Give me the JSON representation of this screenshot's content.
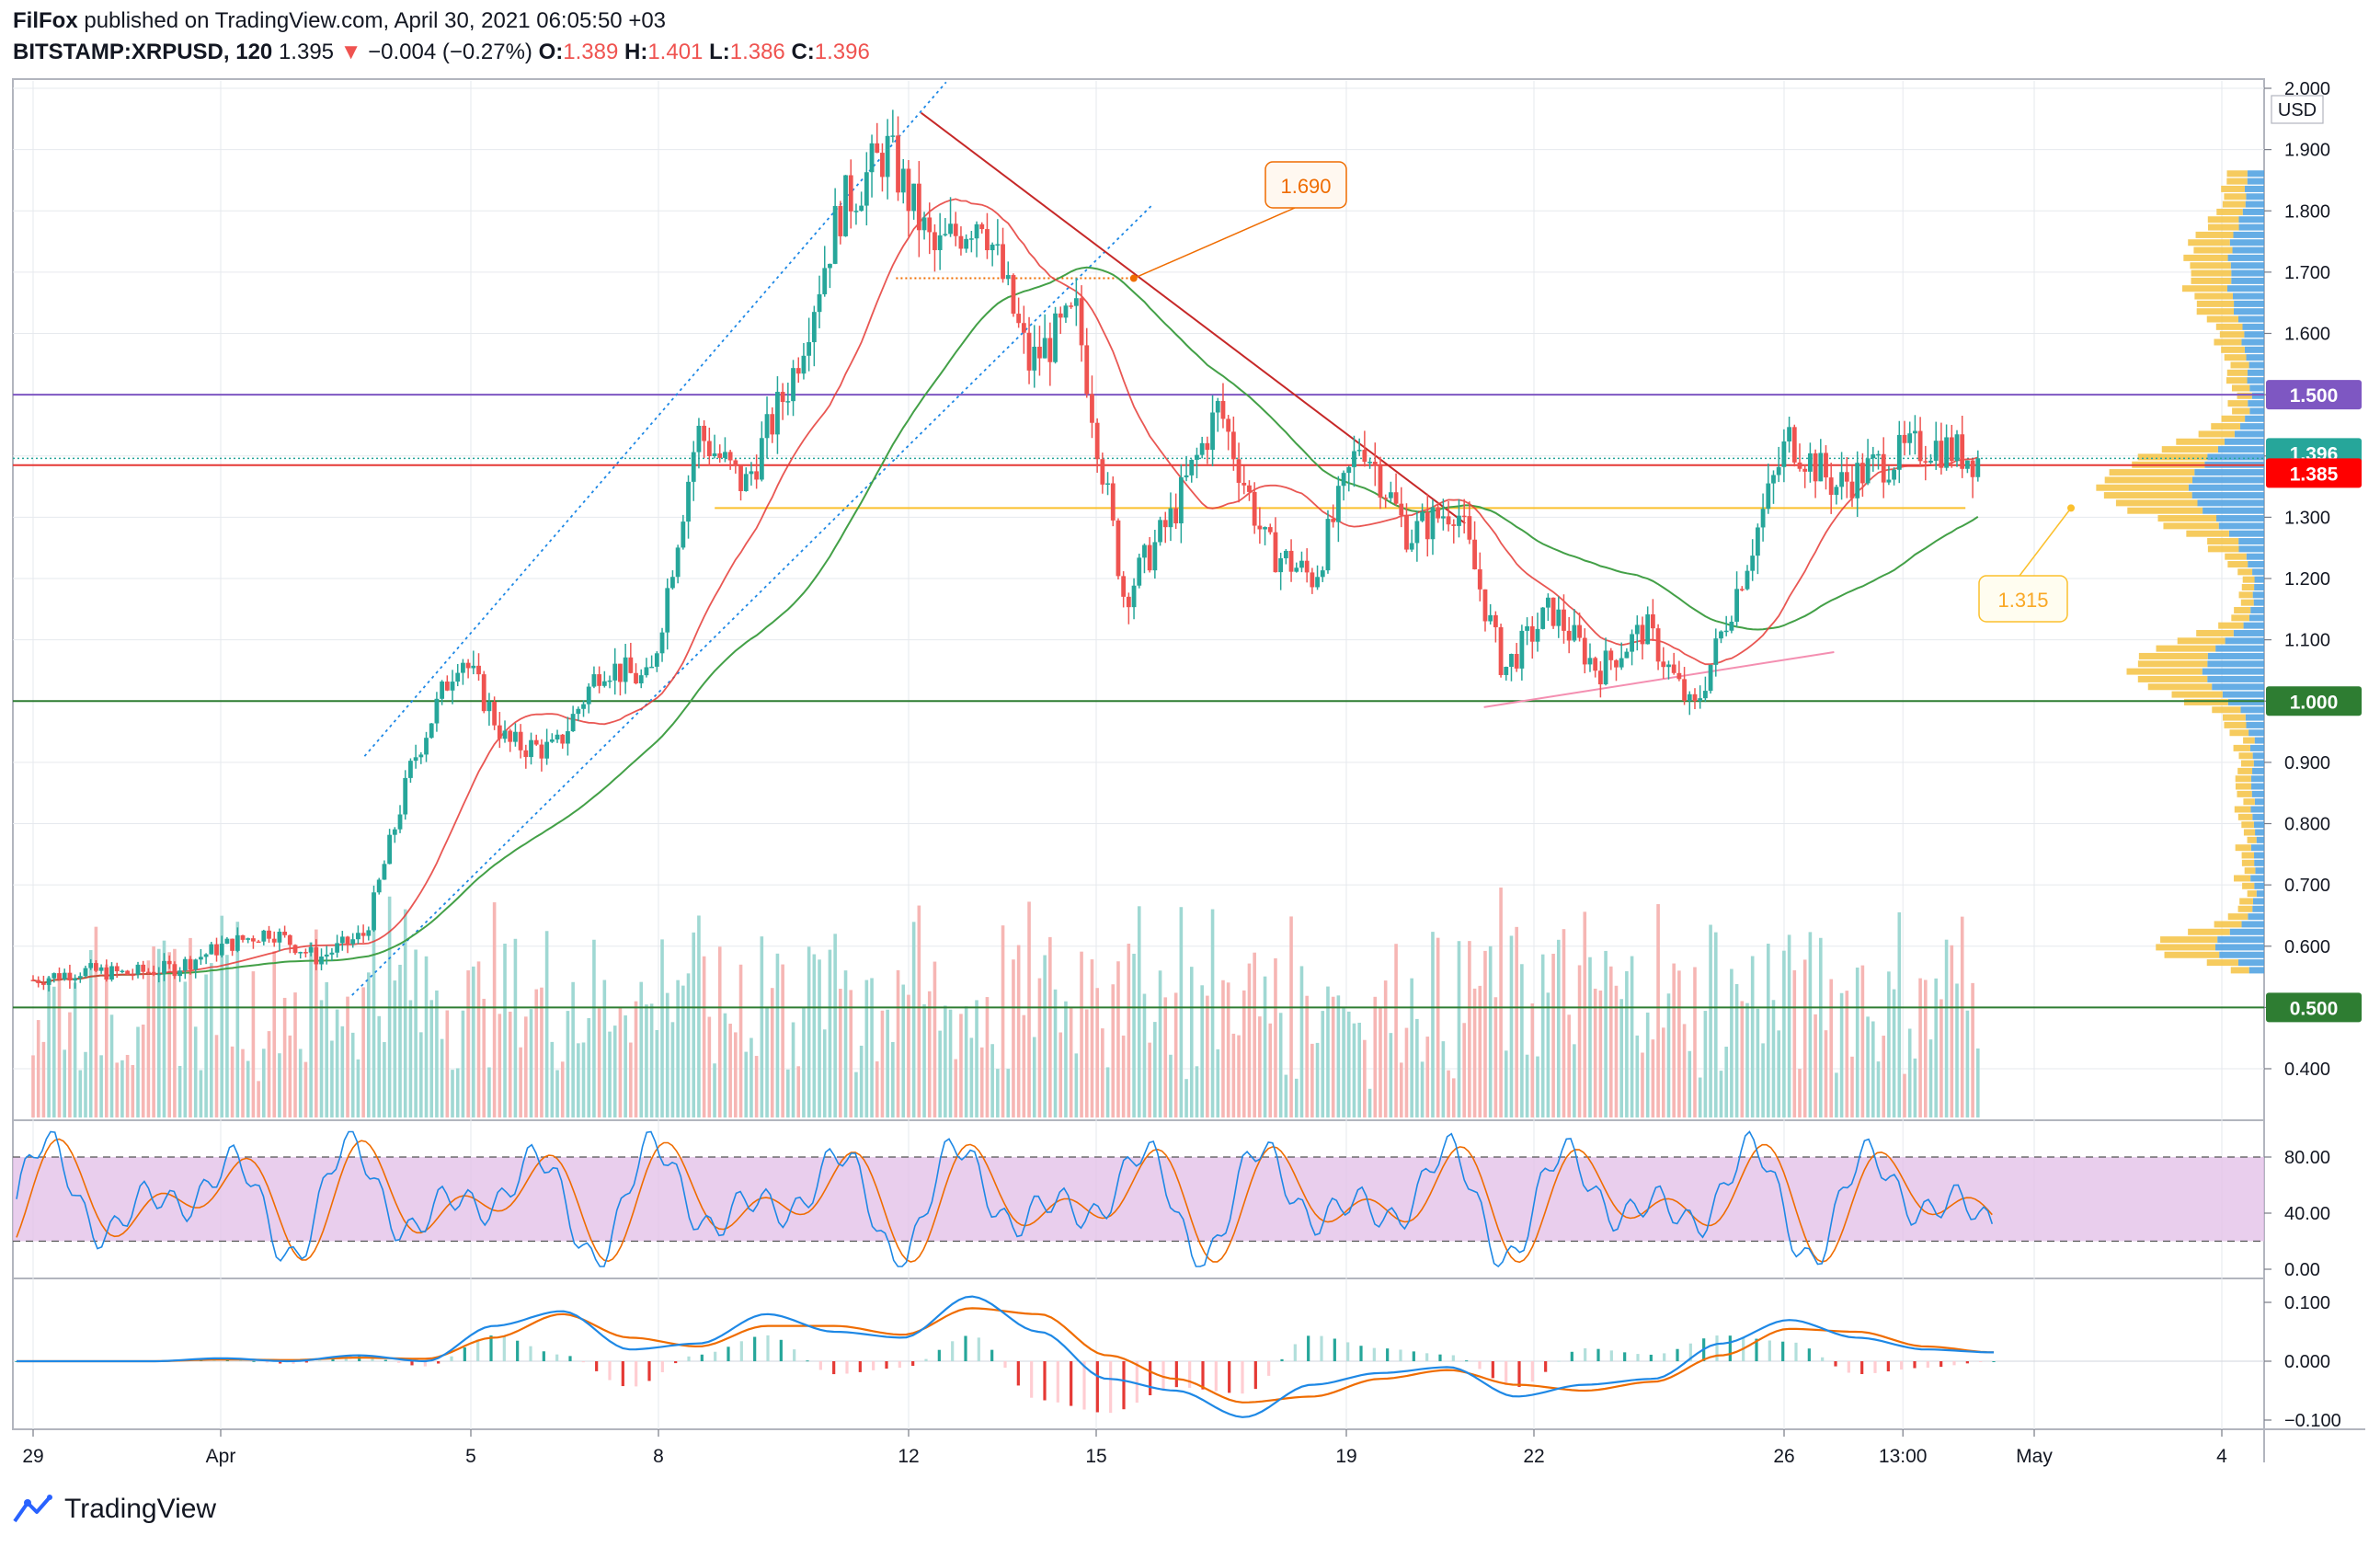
{
  "header": {
    "publisher": "FilFox",
    "published_text": "published on TradingView.com, April 30, 2021 06:05:50 +03",
    "symbol": "BITSTAMP:XRPUSD, 120",
    "last": "1.395",
    "change_arrow": "▼",
    "change": "−0.004 (−0.27%)",
    "o_label": "O:",
    "o": "1.389",
    "h_label": "H:",
    "h": "1.401",
    "l_label": "L:",
    "l": "1.386",
    "c_label": "C:",
    "c": "1.396"
  },
  "footer": {
    "brand": "TradingView"
  },
  "colors": {
    "up": "#26a69a",
    "down": "#ef5350",
    "ma_red": "#e53935",
    "ma_green": "#43a047",
    "purple": "#7e57c2",
    "green_line": "#2e7d32",
    "red_level": "#e53935",
    "gold": "#f9a825",
    "stoch_band": "#e1bee7",
    "macd_blue": "#1e88e5",
    "macd_orange": "#ef6c00",
    "profile_blue": "#4a9fe0",
    "profile_gold": "#f5c242"
  },
  "chart_data": [
    {
      "type": "candlestick",
      "currency": "USD",
      "y_ticks": [
        "2.000",
        "1.900",
        "1.800",
        "1.700",
        "1.600",
        "1.500",
        "1.400",
        "1.300",
        "1.200",
        "1.100",
        "1.000",
        "0.900",
        "0.800",
        "0.700",
        "0.600",
        "0.500",
        "0.400"
      ],
      "ylim": [
        0.32,
        2.02
      ],
      "x_ticks": [
        "29",
        "Apr",
        "5",
        "8",
        "12",
        "15",
        "19",
        "22",
        "26",
        "13:00",
        "May",
        "4"
      ],
      "price_badges": [
        {
          "label": "1.500",
          "color": "#7e57c2"
        },
        {
          "label": "1.396",
          "color": "#26a69a"
        },
        {
          "label": "1.385",
          "color": "#ff0000"
        },
        {
          "label": "1.000",
          "color": "#2e7d32"
        },
        {
          "label": "0.500",
          "color": "#2e7d32"
        }
      ],
      "horizontal_levels": [
        {
          "value": 1.5,
          "color": "#7e57c2"
        },
        {
          "value": 1.385,
          "color": "#e53935"
        },
        {
          "value": 1.0,
          "color": "#2e7d32"
        },
        {
          "value": 0.5,
          "color": "#2e7d32"
        }
      ],
      "callouts": [
        {
          "label": "1.690",
          "value": 1.69
        },
        {
          "label": "1.315",
          "value": 1.315
        }
      ],
      "price_path": [
        {
          "d": "Mar 29",
          "v": 0.545
        },
        {
          "d": "Mar 30",
          "v": 0.56
        },
        {
          "d": "Mar 31",
          "v": 0.555
        },
        {
          "d": "Apr 1",
          "v": 0.565
        },
        {
          "d": "Apr 2",
          "v": 0.6
        },
        {
          "d": "Apr 3",
          "v": 0.625
        },
        {
          "d": "Apr 4",
          "v": 0.58
        },
        {
          "d": "Apr 5",
          "v": 0.62
        },
        {
          "d": "Apr 6",
          "v": 0.9
        },
        {
          "d": "Apr 7",
          "v": 1.08
        },
        {
          "d": "Apr 7b",
          "v": 0.93
        },
        {
          "d": "Apr 8",
          "v": 0.92
        },
        {
          "d": "Apr 9",
          "v": 1.06
        },
        {
          "d": "Apr 10",
          "v": 1.03
        },
        {
          "d": "Apr 11",
          "v": 1.44
        },
        {
          "d": "Apr 12",
          "v": 1.35
        },
        {
          "d": "Apr 13",
          "v": 1.53
        },
        {
          "d": "Apr 13b",
          "v": 1.8
        },
        {
          "d": "Apr 14",
          "v": 1.9
        },
        {
          "d": "Apr 15",
          "v": 1.73
        },
        {
          "d": "Apr 16",
          "v": 1.8
        },
        {
          "d": "Apr 16b",
          "v": 1.55
        },
        {
          "d": "Apr 17",
          "v": 1.63
        },
        {
          "d": "Apr 18",
          "v": 1.17
        },
        {
          "d": "Apr 18b",
          "v": 1.3
        },
        {
          "d": "Apr 19",
          "v": 1.48
        },
        {
          "d": "Apr 19b",
          "v": 1.25
        },
        {
          "d": "Apr 20",
          "v": 1.2
        },
        {
          "d": "Apr 21",
          "v": 1.43
        },
        {
          "d": "Apr 21b",
          "v": 1.27
        },
        {
          "d": "Apr 22",
          "v": 1.32
        },
        {
          "d": "Apr 23",
          "v": 1.05
        },
        {
          "d": "Apr 23b",
          "v": 1.15
        },
        {
          "d": "Apr 24",
          "v": 1.05
        },
        {
          "d": "Apr 25",
          "v": 1.12
        },
        {
          "d": "Apr 26",
          "v": 0.98
        },
        {
          "d": "Apr 26b",
          "v": 1.2
        },
        {
          "d": "Apr 27",
          "v": 1.43
        },
        {
          "d": "Apr 28",
          "v": 1.35
        },
        {
          "d": "Apr 28b",
          "v": 1.39
        },
        {
          "d": "Apr 29",
          "v": 1.42
        },
        {
          "d": "Apr 30",
          "v": 1.395
        }
      ]
    },
    {
      "type": "stochastic",
      "y_ticks": [
        "80.00",
        "40.00",
        "0.00"
      ],
      "ylim": [
        -5,
        100
      ],
      "band": [
        20,
        80
      ]
    },
    {
      "type": "macd",
      "y_ticks": [
        "0.100",
        "0.000",
        "−0.100"
      ],
      "ylim": [
        -0.1,
        0.12
      ],
      "series": [
        {
          "name": "macd",
          "values": [
            0,
            0,
            0,
            0.005,
            0,
            0.01,
            0,
            0.06,
            0.085,
            0.02,
            0.03,
            0.08,
            0.05,
            0.04,
            0.11,
            0.05,
            -0.03,
            -0.05,
            -0.095,
            -0.04,
            -0.02,
            -0.01,
            -0.06,
            -0.04,
            -0.03,
            0.03,
            0.07,
            0.04,
            0.02,
            0.015
          ]
        },
        {
          "name": "signal",
          "values": [
            0,
            0,
            0,
            0.003,
            0.002,
            0.006,
            0.004,
            0.04,
            0.08,
            0.04,
            0.025,
            0.06,
            0.06,
            0.045,
            0.09,
            0.08,
            0.01,
            -0.03,
            -0.07,
            -0.06,
            -0.03,
            -0.015,
            -0.04,
            -0.05,
            -0.035,
            0.01,
            0.055,
            0.05,
            0.025,
            0.015
          ]
        }
      ]
    }
  ]
}
